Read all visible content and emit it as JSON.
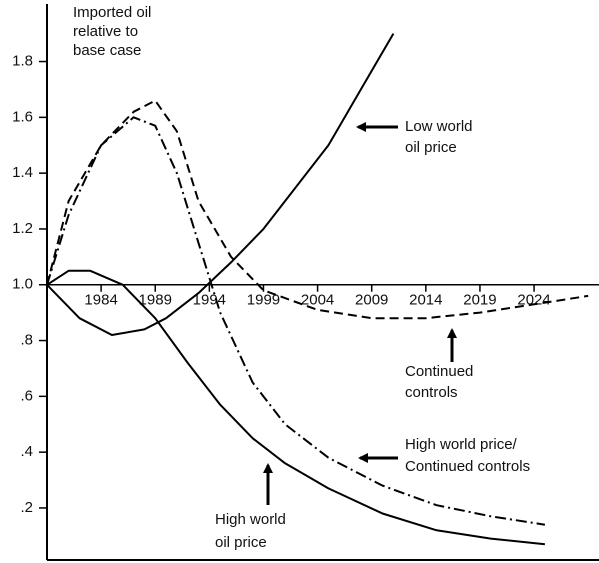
{
  "chart_data": {
    "type": "line",
    "xlim": [
      1979,
      2030
    ],
    "ylim": [
      0,
      2.0
    ],
    "xticks": [
      1984,
      1989,
      1994,
      1999,
      2004,
      2009,
      2014,
      2019,
      2024
    ],
    "yticks": [
      {
        "value": 0.2,
        "label": ".2"
      },
      {
        "value": 0.4,
        "label": ".4"
      },
      {
        "value": 0.6,
        "label": ".6"
      },
      {
        "value": 0.8,
        "label": ".8"
      },
      {
        "value": 1.0,
        "label": "1.0"
      },
      1.2,
      1.4,
      1.6,
      1.8
    ],
    "series": [
      {
        "color": "#000000",
        "style": "solid",
        "x": [
          1979,
          1982,
          1985,
          1988,
          1990,
          1993,
          1996,
          1999,
          2002,
          2005,
          2008,
          2011
        ],
        "values": [
          1.0,
          0.88,
          0.82,
          0.84,
          0.88,
          0.97,
          1.08,
          1.2,
          1.35,
          1.5,
          1.7,
          1.9
        ]
      },
      {
        "color": "#000000",
        "style": "solid",
        "x": [
          1979,
          1981,
          1983,
          1986,
          1989,
          1992,
          1995,
          1998,
          2001,
          2005,
          2010,
          2015,
          2020,
          2025
        ],
        "values": [
          1.0,
          1.05,
          1.05,
          1.0,
          0.88,
          0.72,
          0.57,
          0.45,
          0.36,
          0.27,
          0.18,
          0.12,
          0.09,
          0.07
        ]
      },
      {
        "color": "#000000",
        "style": "dashed",
        "x": [
          1979,
          1981,
          1984,
          1987,
          1989,
          1991,
          1993,
          1996,
          1999,
          2004,
          2009,
          2014,
          2019,
          2024,
          2029
        ],
        "values": [
          1.0,
          1.3,
          1.5,
          1.62,
          1.66,
          1.55,
          1.3,
          1.1,
          0.98,
          0.91,
          0.88,
          0.88,
          0.9,
          0.93,
          0.96
        ]
      },
      {
        "color": "#000000",
        "style": "dashdot",
        "x": [
          1979,
          1981,
          1984,
          1987,
          1989,
          1991,
          1993,
          1995,
          1998,
          2001,
          2005,
          2010,
          2015,
          2020,
          2025
        ],
        "values": [
          1.0,
          1.25,
          1.5,
          1.6,
          1.57,
          1.4,
          1.15,
          0.9,
          0.65,
          0.5,
          0.38,
          0.28,
          0.21,
          0.17,
          0.14
        ]
      }
    ],
    "annotations": [
      {
        "lines": [
          "Imported oil",
          "relative to",
          "base case"
        ]
      },
      {
        "lines": [
          "Low world",
          "oil price"
        ]
      },
      {
        "lines": [
          "Continued",
          "controls"
        ]
      },
      {
        "lines": [
          "High world price/",
          "Continued controls"
        ]
      },
      {
        "lines": [
          "High world",
          "oil price"
        ]
      }
    ]
  }
}
